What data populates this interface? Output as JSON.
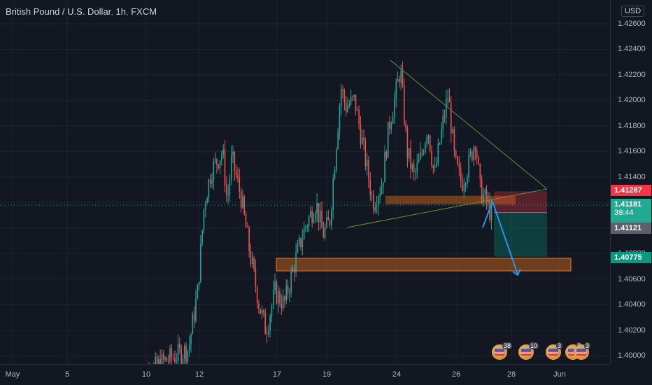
{
  "header": {
    "symbol": "British Pound / U.S. Dollar",
    "interval": "1h",
    "exchange": "FXCM",
    "currency_badge": "USD"
  },
  "price_axis": {
    "ticks": [
      "1.42600",
      "1.42400",
      "1.42200",
      "1.42000",
      "1.41800",
      "1.41600",
      "1.41400",
      "1.41200",
      "1.41000",
      "1.40800",
      "1.40600",
      "1.40400",
      "1.40200",
      "1.40000"
    ],
    "tick_values": [
      1.426,
      1.424,
      1.422,
      1.42,
      1.418,
      1.416,
      1.414,
      1.412,
      1.41,
      1.408,
      1.406,
      1.404,
      1.402,
      1.4
    ]
  },
  "price_badges": {
    "stop": {
      "label": "1.41287",
      "value": 1.41287,
      "color": "#f23645"
    },
    "current": {
      "label": "1.41181",
      "value": 1.41181,
      "countdown": "39:44",
      "color": "#22ab94"
    },
    "entry": {
      "label": "1.41121",
      "value": 1.41121,
      "color": "#5d606b"
    },
    "target": {
      "label": "1.40775",
      "value": 1.40775,
      "color": "#089981"
    }
  },
  "time_axis": {
    "labels": [
      "May",
      "5",
      "10",
      "12",
      "17",
      "19",
      "24",
      "26",
      "28",
      "Jun"
    ]
  },
  "events": [
    {
      "name": "us-event",
      "count": "38"
    },
    {
      "name": "us-event",
      "count": "10"
    },
    {
      "name": "us-event",
      "count": "3"
    },
    {
      "name": "uk-event",
      "count": "2"
    },
    {
      "name": "us-event",
      "count": "3"
    }
  ],
  "colors": {
    "background": "#131722",
    "up_candle": "#26a69a",
    "down_candle": "#ef5350",
    "triangle_line": "#6b8e3a",
    "zone_fill": "#b85c1a",
    "arrow": "#2196f3"
  },
  "chart_data": {
    "type": "candlestick",
    "title": "",
    "xlabel": "",
    "ylabel": "",
    "ylim": [
      1.3998,
      1.4272
    ],
    "x_range_hours": [
      0,
      720
    ],
    "series": [
      {
        "name": "",
        "close_path": [
          [
            0,
            1.398
          ],
          [
            120,
            1.3995
          ],
          [
            230,
            1.4005
          ],
          [
            270,
            1.405
          ],
          [
            300,
            1.412
          ],
          [
            330,
            1.4145
          ],
          [
            380,
            1.416
          ],
          [
            400,
            1.412
          ],
          [
            420,
            1.4155
          ],
          [
            460,
            1.4125
          ],
          [
            500,
            1.408
          ],
          [
            540,
            1.404
          ],
          [
            570,
            1.402
          ],
          [
            610,
            1.405
          ],
          [
            650,
            1.404
          ],
          [
            700,
            1.4075
          ],
          [
            740,
            1.41
          ],
          [
            790,
            1.412
          ],
          [
            820,
            1.4095
          ],
          [
            850,
            1.4105
          ],
          [
            880,
            1.417
          ],
          [
            900,
            1.421
          ],
          [
            920,
            1.4195
          ],
          [
            960,
            1.42
          ],
          [
            1000,
            1.416
          ],
          [
            1040,
            1.412
          ],
          [
            1080,
            1.4135
          ],
          [
            1110,
            1.418
          ],
          [
            1140,
            1.4205
          ],
          [
            1160,
            1.4225
          ],
          [
            1190,
            1.416
          ],
          [
            1220,
            1.414
          ],
          [
            1250,
            1.4155
          ],
          [
            1280,
            1.418
          ],
          [
            1310,
            1.414
          ],
          [
            1340,
            1.4175
          ],
          [
            1370,
            1.4205
          ],
          [
            1400,
            1.415
          ],
          [
            1430,
            1.4135
          ],
          [
            1460,
            1.415
          ],
          [
            1490,
            1.417
          ],
          [
            1510,
            1.413
          ],
          [
            1540,
            1.412
          ],
          [
            1560,
            1.411
          ]
        ]
      }
    ],
    "drawings": {
      "triangle_upper": [
        [
          1.4235,
          "23"
        ],
        [
          1.4132,
          "29"
        ]
      ],
      "triangle_lower": [
        [
          1.412,
          "20"
        ],
        [
          1.4132,
          "29"
        ]
      ],
      "resistance_zone": [
        1.4117,
        1.4123
      ],
      "support_zone": [
        1.4073,
        1.4081
      ],
      "short_position": {
        "entry": 1.41121,
        "stop": 1.41287,
        "target": 1.40775
      }
    }
  }
}
